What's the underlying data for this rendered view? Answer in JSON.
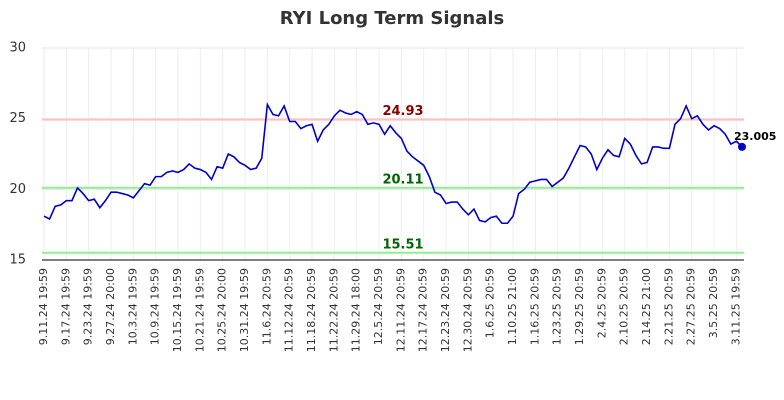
{
  "chart_data": {
    "type": "line",
    "title": "RYI Long Term Signals",
    "categories": [
      "9.11.24 19:59",
      null,
      null,
      null,
      "9.17.24 19:59",
      null,
      null,
      null,
      "9.23.24 19:59",
      null,
      null,
      null,
      "9.27.24 20:00",
      null,
      null,
      null,
      "10.3.24 19:59",
      null,
      null,
      null,
      "10.9.24 19:59",
      null,
      null,
      null,
      "10.15.24 19:59",
      null,
      null,
      null,
      "10.21.24 19:59",
      null,
      null,
      null,
      "10.25.24 20:00",
      null,
      null,
      null,
      "10.31.24 19:59",
      null,
      null,
      null,
      "11.6.24 20:59",
      null,
      null,
      null,
      "11.12.24 20:59",
      null,
      null,
      null,
      "11.18.24 20:59",
      null,
      null,
      null,
      "11.22.24 20:59",
      null,
      null,
      null,
      "11.29.24 18:00",
      null,
      null,
      null,
      "12.5.24 20:59",
      null,
      null,
      null,
      "12.11.24 20:59",
      null,
      null,
      null,
      "12.17.24 20:59",
      null,
      null,
      null,
      "12.23.24 20:59",
      null,
      null,
      null,
      "12.30.24 20:59",
      null,
      null,
      null,
      "1.6.25 20:59",
      null,
      null,
      null,
      "1.10.25 21:00",
      null,
      null,
      null,
      "1.16.25 20:59",
      null,
      null,
      null,
      "1.23.25 20:59",
      null,
      null,
      null,
      "1.29.25 20:59",
      null,
      null,
      null,
      "2.4.25 20:59",
      null,
      null,
      null,
      "2.10.25 20:59",
      null,
      null,
      null,
      "2.14.25 21:00",
      null,
      null,
      null,
      "2.21.25 20:59",
      null,
      null,
      null,
      "2.27.25 20:59",
      null,
      null,
      null,
      "3.5.25 20:59",
      null,
      null,
      null,
      "3.11.25 19:59",
      null
    ],
    "values": [
      18.1,
      17.9,
      18.8,
      18.9,
      19.2,
      19.2,
      20.1,
      19.7,
      19.2,
      19.3,
      18.7,
      19.2,
      19.8,
      19.8,
      19.7,
      19.6,
      19.4,
      19.9,
      20.4,
      20.3,
      20.9,
      20.9,
      21.2,
      21.3,
      21.2,
      21.4,
      21.8,
      21.5,
      21.4,
      21.2,
      20.7,
      21.6,
      21.5,
      22.5,
      22.3,
      21.9,
      21.7,
      21.4,
      21.5,
      22.2,
      26.0,
      25.3,
      25.2,
      25.9,
      24.8,
      24.8,
      24.3,
      24.5,
      24.6,
      23.4,
      24.2,
      24.6,
      25.2,
      25.6,
      25.4,
      25.3,
      25.5,
      25.3,
      24.6,
      24.7,
      24.6,
      23.9,
      24.5,
      24.0,
      23.6,
      22.7,
      22.3,
      22.0,
      21.7,
      20.9,
      19.8,
      19.6,
      19.0,
      19.1,
      19.1,
      18.6,
      18.2,
      18.6,
      17.8,
      17.7,
      18.0,
      18.1,
      17.6,
      17.6,
      18.1,
      19.7,
      20.0,
      20.5,
      20.6,
      20.7,
      20.7,
      20.2,
      20.5,
      20.8,
      21.5,
      22.3,
      23.1,
      23.0,
      22.5,
      21.4,
      22.2,
      22.8,
      22.4,
      22.3,
      23.6,
      23.2,
      22.4,
      21.8,
      21.9,
      23.0,
      23.0,
      22.9,
      22.9,
      24.6,
      25.0,
      25.9,
      25.0,
      25.2,
      24.6,
      24.2,
      24.5,
      24.3,
      23.9,
      23.2,
      23.4,
      23.005
    ],
    "color": "#0000cd",
    "hlines": [
      {
        "value": 24.93,
        "color": "#ffc0c0",
        "label_color": "#8b0000"
      },
      {
        "value": 20.11,
        "color": "#90ee90",
        "label_color": "#006400"
      },
      {
        "value": 15.51,
        "color": "#90ee90",
        "label_color": "#006400"
      }
    ],
    "ylim": [
      15,
      30
    ],
    "yticks": [
      15,
      20,
      25,
      30
    ],
    "grid": true
  }
}
